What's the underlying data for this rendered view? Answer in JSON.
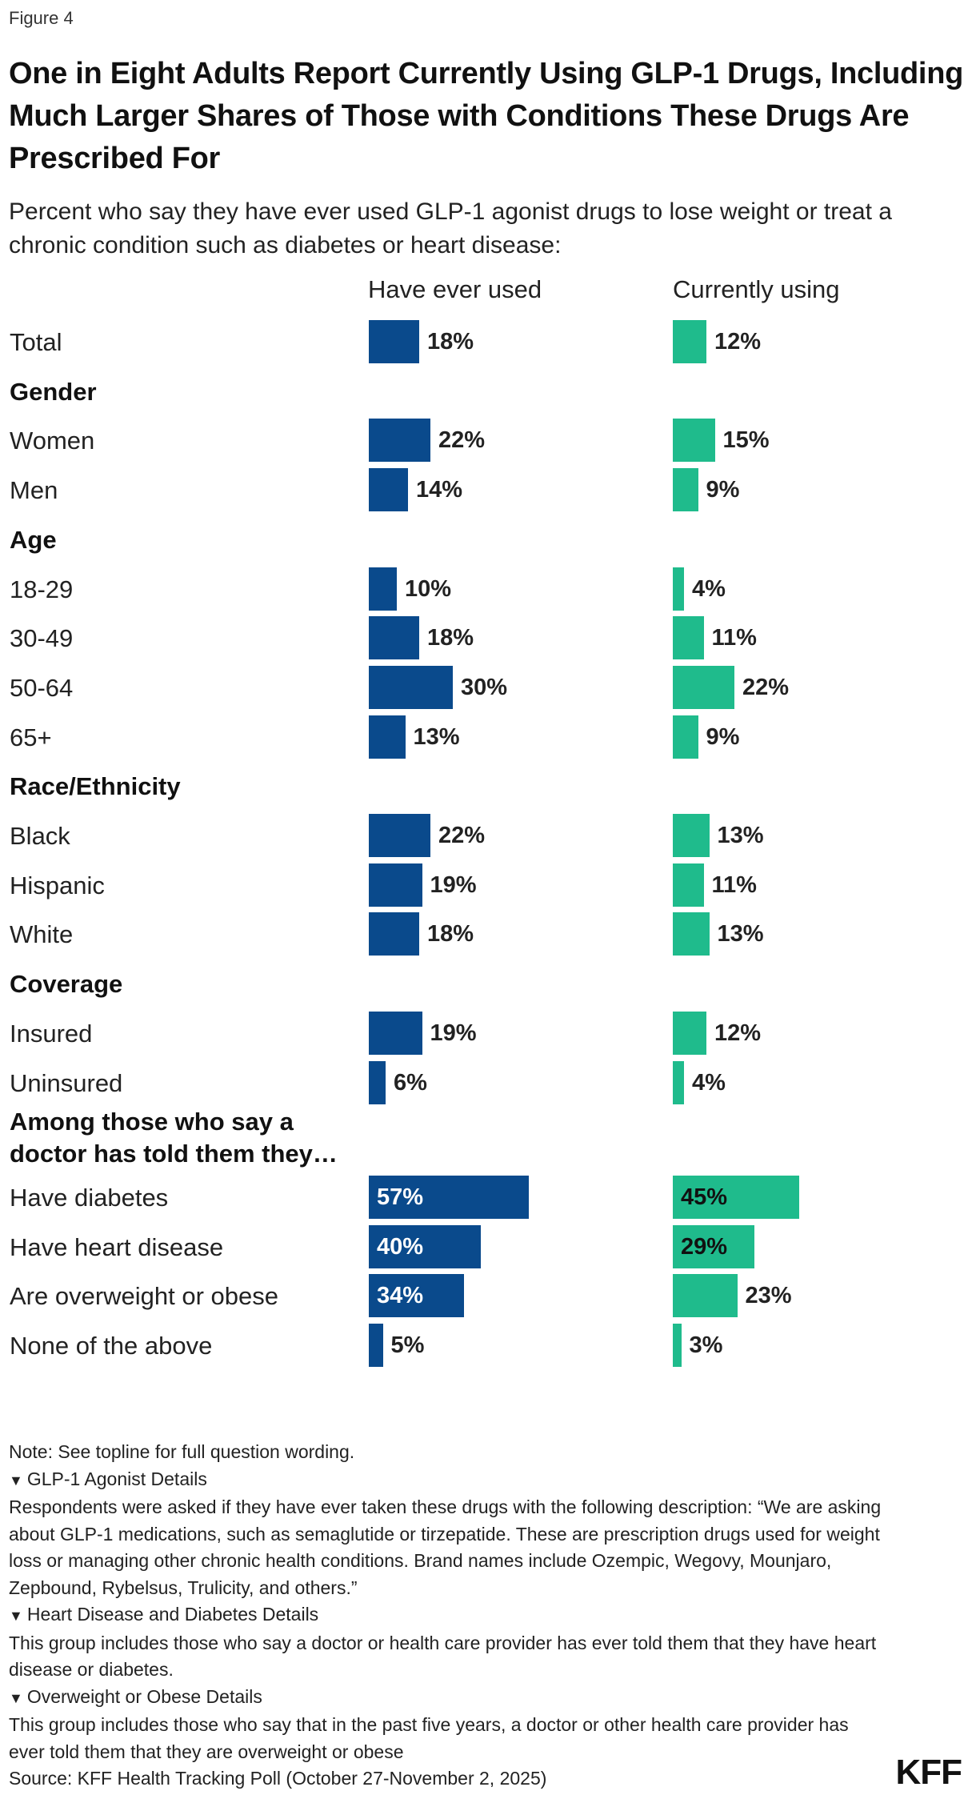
{
  "figure_label": "Figure 4",
  "logo_text": "KFF",
  "colors": {
    "ever": "#0a4a8c",
    "current": "#1fbb8c"
  },
  "chart_data": {
    "type": "bar",
    "orientation": "horizontal",
    "title": "One in Eight Adults Report Currently Using GLP-1 Drugs, Including Much Larger Shares of Those with Conditions These Drugs Are Prescribed For",
    "subtitle": "Percent who say they have ever used GLP-1 agonist drugs to lose weight or treat a chronic condition such as diabetes or heart disease:",
    "series": [
      {
        "name": "Have ever used",
        "color": "#0a4a8c"
      },
      {
        "name": "Currently using",
        "color": "#1fbb8c"
      }
    ],
    "rows": [
      {
        "label": "Total",
        "ever": 18,
        "current": 12
      },
      {
        "label": "Gender",
        "header": true
      },
      {
        "label": "Women",
        "ever": 22,
        "current": 15
      },
      {
        "label": "Men",
        "ever": 14,
        "current": 9
      },
      {
        "label": "Age",
        "header": true
      },
      {
        "label": "18-29",
        "ever": 10,
        "current": 4
      },
      {
        "label": "30-49",
        "ever": 18,
        "current": 11
      },
      {
        "label": "50-64",
        "ever": 30,
        "current": 22
      },
      {
        "label": "65+",
        "ever": 13,
        "current": 9
      },
      {
        "label": "Race/Ethnicity",
        "header": true
      },
      {
        "label": "Black",
        "ever": 22,
        "current": 13
      },
      {
        "label": "Hispanic",
        "ever": 19,
        "current": 11
      },
      {
        "label": "White",
        "ever": 18,
        "current": 13
      },
      {
        "label": "Coverage",
        "header": true
      },
      {
        "label": "Insured",
        "ever": 19,
        "current": 12
      },
      {
        "label": "Uninsured",
        "ever": 6,
        "current": 4
      },
      {
        "label": "Among those who say a doctor has told them they…",
        "header": true,
        "two_line": true
      },
      {
        "label": "Have diabetes",
        "ever": 57,
        "current": 45,
        "ever_inside": true,
        "current_inside": true
      },
      {
        "label": "Have heart disease",
        "ever": 40,
        "current": 29,
        "ever_inside": true,
        "current_inside": true
      },
      {
        "label": "Are overweight or obese",
        "ever": 34,
        "current": 23,
        "ever_inside": true
      },
      {
        "label": "None of the above",
        "ever": 5,
        "current": 3
      }
    ],
    "xlim": [
      0,
      100
    ]
  },
  "notes": {
    "note": "Note: See topline for full question wording.",
    "details": [
      {
        "head": "GLP-1 Agonist Details",
        "body": "Respondents were asked if they have ever taken these drugs with the following description: “We are asking about GLP-1 medications, such as semaglutide or tirzepatide. These are prescription drugs used for weight loss or managing other chronic health conditions. Brand names include Ozempic, Wegovy, Mounjaro, Zepbound, Rybelsus, Trulicity, and others.”"
      },
      {
        "head": "Heart Disease and Diabetes Details",
        "body": "This group includes those who say a doctor or health care provider has ever told them that they have heart disease or diabetes."
      },
      {
        "head": "Overweight or Obese Details",
        "body": "This group includes those who say that in the past five years, a doctor or other health care provider has ever told them that they are overweight or obese"
      }
    ],
    "source": "Source: KFF Health Tracking Poll (October 27-November 2, 2025)"
  }
}
